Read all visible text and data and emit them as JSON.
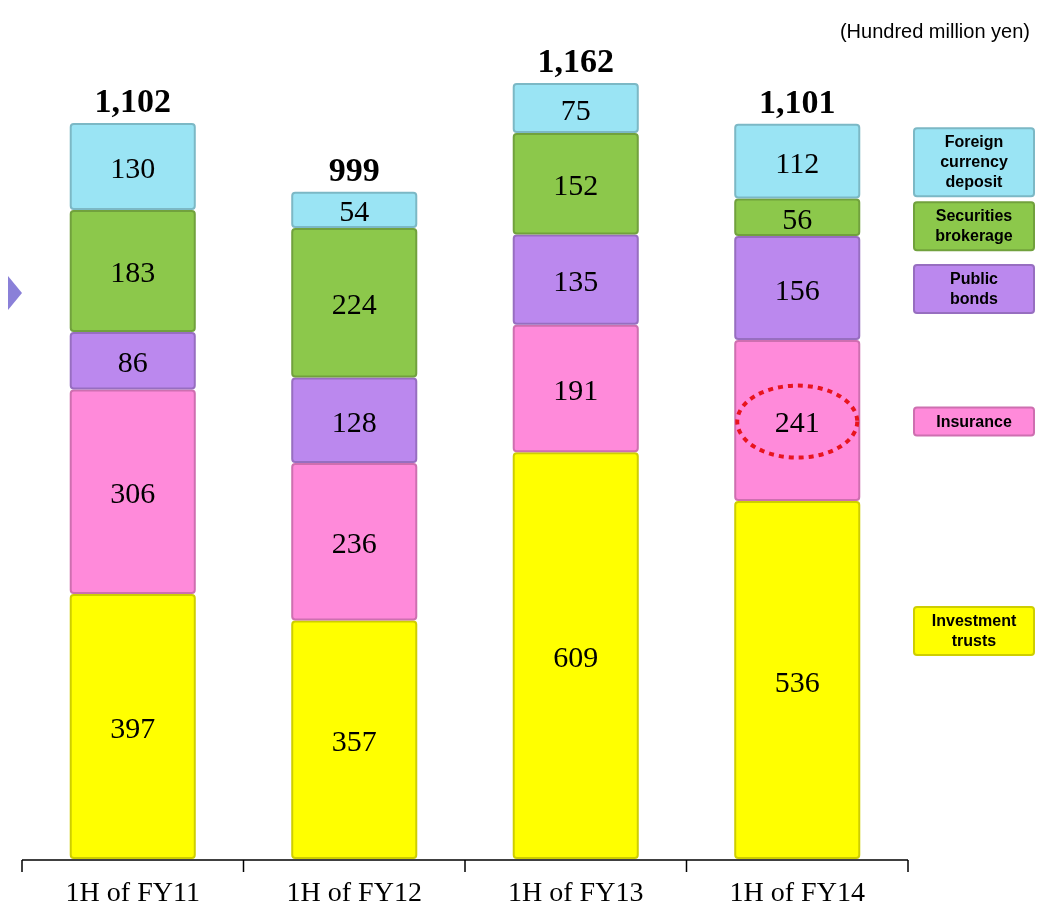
{
  "chart_data": {
    "type": "bar",
    "stacked": true,
    "categories": [
      "1H of FY11",
      "1H of FY12",
      "1H of FY13",
      "1H of FY14"
    ],
    "series": [
      {
        "name": "Investment trusts",
        "color": "#ffff00",
        "values": [
          397,
          357,
          609,
          536
        ]
      },
      {
        "name": "Insurance",
        "color": "#ff8ada",
        "values": [
          306,
          236,
          191,
          241
        ]
      },
      {
        "name": "Public bonds",
        "color": "#bb88ee",
        "values": [
          86,
          128,
          135,
          156
        ]
      },
      {
        "name": "Securities brokerage",
        "color": "#8cc84b",
        "values": [
          183,
          224,
          152,
          56
        ]
      },
      {
        "name": "Foreign currency deposit",
        "color": "#9ae4f4",
        "values": [
          130,
          54,
          75,
          112
        ]
      }
    ],
    "data_labels": true,
    "totals": [
      "1,102",
      "999",
      "1,162",
      "1,101"
    ],
    "legend": "right",
    "annotations": [
      "(Hundred million yen)"
    ]
  }
}
